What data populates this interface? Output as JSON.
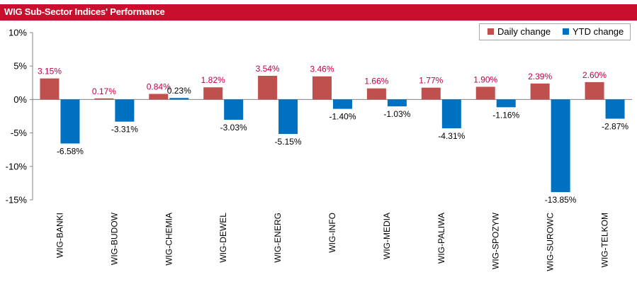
{
  "title": "WIG Sub-Sector Indices' Performance",
  "colors": {
    "title_bar": "#c8102e",
    "daily": "#c0504d",
    "ytd": "#0070c0",
    "daily_label": "#c0004a"
  },
  "chart_data": {
    "type": "bar",
    "title": "WIG Sub-Sector Indices' Performance",
    "categories": [
      "WIG-BANKI",
      "WIG-BUDOW",
      "WIG-CHEMIA",
      "WIG-DEWEL",
      "WIG-ENERG",
      "WIG-INFO",
      "WIG-MEDIA",
      "WIG-PALIWA",
      "WIG-SPOZYW",
      "WIG-SUROWC",
      "WIG-TELKOM"
    ],
    "series": [
      {
        "name": "Daily change",
        "values": [
          3.15,
          0.17,
          0.84,
          1.82,
          3.54,
          3.46,
          1.66,
          1.77,
          1.9,
          2.39,
          2.6
        ],
        "labels": [
          "3.15%",
          "0.17%",
          "0.84%",
          "1.82%",
          "3.54%",
          "3.46%",
          "1.66%",
          "1.77%",
          "1.90%",
          "2.39%",
          "2.60%"
        ]
      },
      {
        "name": "YTD change",
        "values": [
          -6.58,
          -3.31,
          0.23,
          -3.03,
          -5.15,
          -1.4,
          -1.03,
          -4.31,
          -1.16,
          -13.85,
          -2.87
        ],
        "labels": [
          "-6.58%",
          "-3.31%",
          "0.23%",
          "-3.03%",
          "-5.15%",
          "-1.40%",
          "-1.03%",
          "-4.31%",
          "-1.16%",
          "-13.85%",
          "-2.87%"
        ]
      }
    ],
    "ylim": [
      -15,
      10
    ],
    "yticks": [
      10,
      5,
      0,
      -5,
      -10,
      -15
    ],
    "ytick_labels": [
      "10%",
      "5%",
      "0%",
      "-5%",
      "-10%",
      "-15%"
    ],
    "legend": "top-right",
    "grid": false
  }
}
